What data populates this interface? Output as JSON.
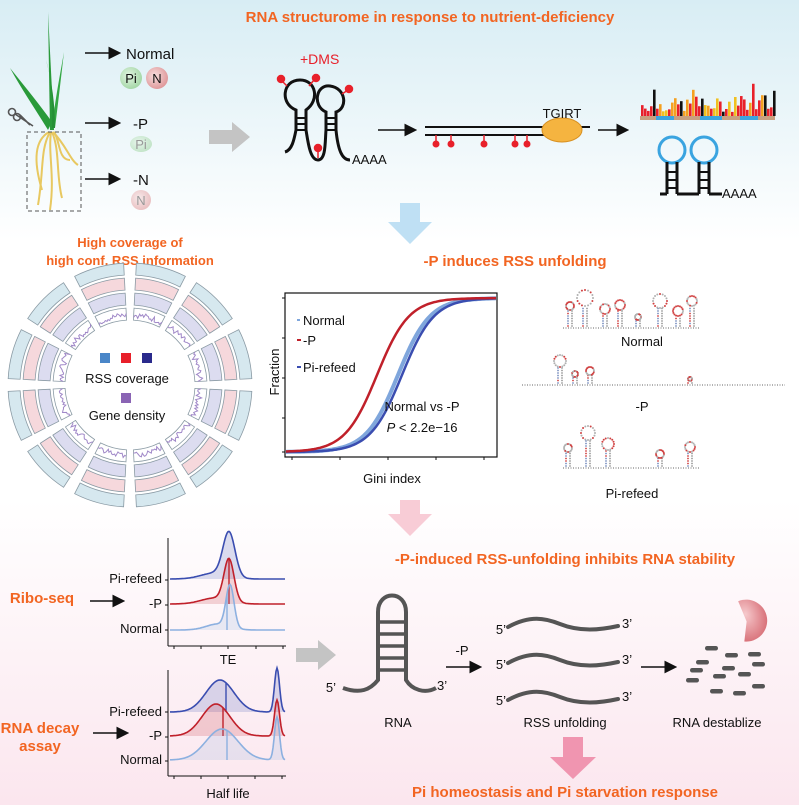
{
  "title": "RNA structurome in response to nutrient-deficiency",
  "conditions": {
    "normal": "Normal",
    "minus_p": "-P",
    "minus_n": "-N",
    "pi": "Pi",
    "n": "N"
  },
  "probing": {
    "dms": "+DMS",
    "polya": "AAAA",
    "rt_enzyme": "TGIRT",
    "polya_2": "AAAA"
  },
  "coverage": {
    "title_line1": "High coverage of",
    "title_line2": "high conf. RSS information",
    "legend_rss": "RSS coverage",
    "legend_gene": "Gene density",
    "colors": {
      "normal": "#4a86c8",
      "minus_p": "#e8202a",
      "pi_refeed": "#2a2a8c",
      "gene_density": "#8a64b4"
    }
  },
  "unfolding": {
    "title": "-P induces RSS unfolding",
    "ylabel": "Fraction",
    "xlabel": "Gini index",
    "legend": [
      "Normal",
      "-P",
      "Pi-refeed"
    ],
    "stat_line1": "Normal vs -P",
    "stat_p": "P",
    "stat_rest": " < 2.2e−16",
    "structures": [
      "Normal",
      "-P",
      "Pi-refeed"
    ],
    "colors": {
      "normal": "#7fa6dc",
      "minus_p": "#c0202a",
      "pi_refeed": "#3a4db0"
    }
  },
  "stability": {
    "title": "-P-induced RSS-unfolding inhibits RNA stability",
    "riboseq": "Ribo-seq",
    "decay_line1": "RNA decay",
    "decay_line2": "assay",
    "tracks": [
      "Pi-refeed",
      "-P",
      "Normal"
    ],
    "te_label": "TE",
    "halflife_label": "Half life",
    "five": "5’",
    "three": "3’",
    "rna": "RNA",
    "minus_p": "-P",
    "rss_unfolding": "RSS unfolding",
    "destablize": "RNA destablize"
  },
  "conclusion": "Pi homeostasis and Pi starvation response"
}
